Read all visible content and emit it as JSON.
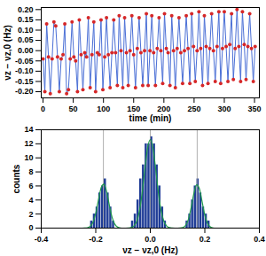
{
  "chart_data": [
    {
      "type": "line",
      "x_label": "time (min)",
      "y_label": "νz − νz,0 (Hz)",
      "x": [
        0,
        3,
        6,
        9,
        12,
        15,
        18,
        21,
        24,
        27,
        30,
        33,
        36,
        39,
        42,
        45,
        48,
        51,
        54,
        57,
        60,
        63,
        66,
        69,
        72,
        75,
        78,
        81,
        84,
        87,
        90,
        93,
        96,
        99,
        102,
        105,
        108,
        111,
        114,
        117,
        120,
        123,
        126,
        129,
        132,
        135,
        138,
        141,
        144,
        147,
        150,
        153,
        156,
        159,
        162,
        165,
        168,
        171,
        174,
        177,
        180,
        183,
        186,
        189,
        192,
        195,
        198,
        201,
        204,
        207,
        210,
        213,
        216,
        219,
        222,
        225,
        228,
        231,
        234,
        237,
        240,
        243,
        246,
        249,
        252,
        255,
        258,
        261,
        264,
        267,
        270,
        273,
        276,
        279,
        282,
        285,
        288,
        291,
        294,
        297,
        300,
        303,
        306,
        309,
        312,
        315,
        318,
        321,
        324,
        327,
        330,
        333,
        336,
        339,
        342,
        345,
        348,
        351
      ],
      "values": [
        -0.04,
        -0.2,
        0.13,
        -0.03,
        -0.21,
        -0.04,
        0.14,
        0.12,
        -0.03,
        -0.2,
        -0.04,
        -0.02,
        0.13,
        -0.21,
        -0.19,
        -0.04,
        0.14,
        -0.03,
        -0.05,
        -0.2,
        0.15,
        -0.02,
        -0.19,
        -0.01,
        -0.03,
        0.16,
        -0.18,
        -0.02,
        0.14,
        -0.2,
        -0.01,
        -0.02,
        0.15,
        -0.19,
        -0.03,
        0.16,
        -0.02,
        -0.18,
        -0.01,
        0.15,
        -0.01,
        -0.17,
        0.17,
        0.0,
        -0.18,
        0.16,
        -0.01,
        -0.17,
        0.0,
        0.17,
        -0.02,
        -0.18,
        0.01,
        0.16,
        -0.01,
        -0.17,
        0.0,
        0.18,
        -0.17,
        0.0,
        0.17,
        -0.01,
        -0.17,
        0.01,
        0.16,
        0.0,
        -0.16,
        0.18,
        0.01,
        -0.01,
        -0.17,
        0.17,
        0.0,
        -0.18,
        0.01,
        0.16,
        -0.01,
        -0.16,
        0.0,
        0.17,
        0.01,
        -0.16,
        0.18,
        0.02,
        -0.15,
        0.0,
        0.19,
        0.01,
        -0.17,
        0.17,
        0.02,
        -0.16,
        0.01,
        0.18,
        0.0,
        -0.15,
        0.02,
        0.19,
        -0.16,
        0.01,
        0.19,
        0.02,
        -0.15,
        0.03,
        0.18,
        -0.14,
        0.01,
        0.2,
        0.02,
        -0.15,
        0.19,
        0.03,
        -0.14,
        0.02,
        0.18,
        0.01,
        -0.15,
        0.02
      ],
      "color": "#4a6fd6",
      "marker": "circle",
      "xlim": [
        -3,
        358
      ],
      "xticks": [
        0,
        50,
        100,
        150,
        200,
        250,
        300,
        350
      ],
      "ylim": [
        -0.23,
        0.21
      ],
      "yticks": [
        {
          "value": -0.2,
          "label": "-0.20"
        },
        -0.15,
        {
          "value": -0.1,
          "label": "-0.10"
        },
        -0.05,
        {
          "value": 0,
          "label": "0.00"
        },
        0.05,
        {
          "value": 0.1,
          "label": "0.10"
        },
        0.15,
        {
          "value": 0.2,
          "label": "0.20"
        }
      ],
      "grid": false
    },
    {
      "type": "histogram",
      "x_label": "νz − νz,0 (Hz)",
      "y_label": "counts",
      "bins": [
        -0.22,
        -0.21,
        -0.2,
        -0.19,
        -0.18,
        -0.17,
        -0.16,
        -0.15,
        -0.14,
        -0.13,
        -0.12,
        -0.11,
        -0.1,
        -0.09,
        -0.08,
        -0.07,
        -0.06,
        -0.05,
        -0.04,
        -0.03,
        -0.02,
        -0.01,
        0.0,
        0.01,
        0.02,
        0.03,
        0.04,
        0.05,
        0.06,
        0.07,
        0.08,
        0.09,
        0.1,
        0.11,
        0.12,
        0.13,
        0.14,
        0.15,
        0.16,
        0.17,
        0.18,
        0.19,
        0.2,
        0.21,
        0.22
      ],
      "counts": [
        1,
        2,
        3,
        5,
        6,
        7,
        5,
        3,
        1,
        0,
        0,
        0,
        0,
        0,
        0,
        1,
        2,
        4,
        7,
        9,
        12,
        12,
        13,
        12,
        9,
        6,
        3,
        1,
        0,
        0,
        0,
        0,
        0,
        0,
        0,
        1,
        2,
        4,
        6,
        7,
        5,
        3,
        2,
        1
      ],
      "color": "#1f3c96",
      "fit": {
        "color": "#1f9a4a",
        "x": [
          -0.25,
          -0.24,
          -0.23,
          -0.22,
          -0.21,
          -0.2,
          -0.19,
          -0.18,
          -0.17,
          -0.16,
          -0.15,
          -0.14,
          -0.13,
          -0.12,
          -0.11,
          -0.1,
          -0.09,
          -0.08,
          -0.07,
          -0.06,
          -0.05,
          -0.04,
          -0.03,
          -0.02,
          -0.01,
          0.0,
          0.01,
          0.02,
          0.03,
          0.04,
          0.05,
          0.06,
          0.07,
          0.08,
          0.09,
          0.1,
          0.11,
          0.12,
          0.13,
          0.14,
          0.15,
          0.16,
          0.17,
          0.18,
          0.19,
          0.2,
          0.21,
          0.22,
          0.23,
          0.24,
          0.25
        ],
        "values": [
          0,
          0.01,
          0.06,
          0.26,
          0.85,
          2.13,
          4.02,
          5.77,
          6.27,
          5.16,
          3.22,
          1.53,
          0.55,
          0.15,
          0.03,
          0,
          0,
          0.02,
          0.08,
          0.31,
          0.95,
          2.41,
          4.97,
          8.33,
          11.36,
          12.6,
          11.36,
          8.33,
          4.97,
          2.41,
          0.95,
          0.31,
          0.08,
          0.02,
          0,
          0,
          0.02,
          0.1,
          0.41,
          1.28,
          2.94,
          4.96,
          6.16,
          5.62,
          3.76,
          1.85,
          0.67,
          0.18,
          0.03,
          0,
          0
        ]
      },
      "reference_lines": [
        -0.172,
        0,
        0.172
      ],
      "xlim": [
        -0.4,
        0.4
      ],
      "xticks": [
        -0.4,
        -0.2,
        {
          "value": 0,
          "label": "0.0"
        },
        0.2,
        0.4
      ],
      "ylim": [
        0,
        14
      ],
      "yticks": [
        0,
        2,
        4,
        6,
        8,
        10,
        12,
        14
      ],
      "grid": false
    }
  ]
}
